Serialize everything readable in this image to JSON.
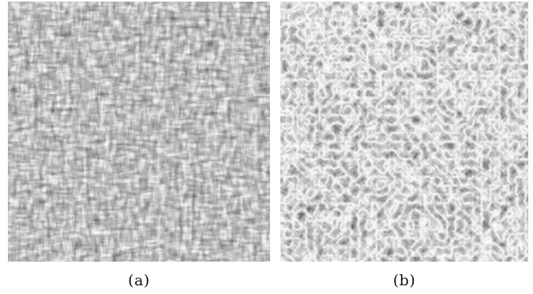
{
  "panels": [
    {
      "label": "(a)",
      "description_tone": "light"
    },
    {
      "label": "(b)",
      "description_tone": "dark"
    }
  ]
}
